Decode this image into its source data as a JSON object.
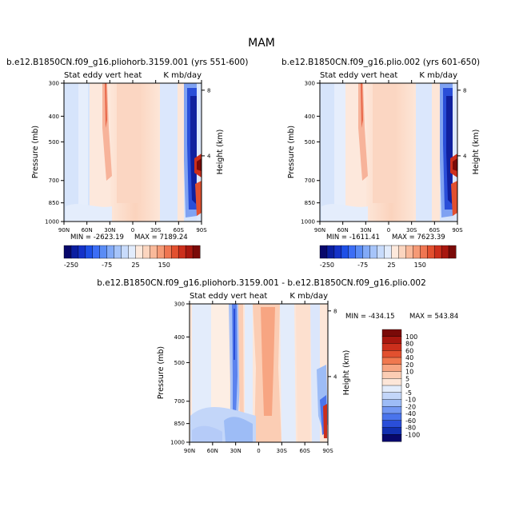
{
  "title": "MAM",
  "colorbar_top": {
    "labels": [
      "-250",
      "-75",
      "25",
      "150"
    ],
    "colors": [
      "#08086b",
      "#0a1ea0",
      "#1432c8",
      "#1e50e6",
      "#3c6ef5",
      "#5a8cf5",
      "#82aaf7",
      "#a6c4f9",
      "#c8dbfb",
      "#e2ecfc",
      "#fde9dc",
      "#fbd5bf",
      "#f9b99a",
      "#f59a76",
      "#ef7652",
      "#e2502f",
      "#cc2f1c",
      "#a8170f",
      "#7a0a08"
    ]
  },
  "colorbar_diff": {
    "labels": [
      "100",
      "80",
      "60",
      "40",
      "20",
      "10",
      "5",
      "0",
      "-5",
      "-10",
      "-20",
      "-40",
      "-60",
      "-80",
      "-100"
    ],
    "colors": [
      "#7a0a08",
      "#a8170f",
      "#cc2f1c",
      "#e2502f",
      "#f0784f",
      "#f7a582",
      "#fbcdb4",
      "#fde6d8",
      "#e3ecfb",
      "#c3d6f9",
      "#9dbcf6",
      "#7398f2",
      "#4a74ec",
      "#2a4ed8",
      "#1230b0",
      "#08086b"
    ]
  },
  "chart_data": [
    {
      "type": "contour",
      "case_label": "b.e12.B1850CN.f09_g16.pliohorb.3159.001 (yrs 551-600)",
      "left_title": "Stat eddy vert heat",
      "right_title": "K mb/day",
      "xlabel": "",
      "ylabel": "Pressure (mb)",
      "y2label": "Height (km)",
      "x_ticks": [
        "90N",
        "60N",
        "30N",
        "0",
        "30S",
        "60S",
        "90S"
      ],
      "y_ticks": [
        "300",
        "400",
        "500",
        "700",
        "850",
        "1000"
      ],
      "y2_ticks": [
        "8",
        "4"
      ],
      "min_label": "MIN = -2623.19",
      "max_label": "MAX = 7189.24",
      "min": -2623.19,
      "max": 7189.24
    },
    {
      "type": "contour",
      "case_label": "b.e12.B1850CN.f09_g16.plio.002 (yrs 601-650)",
      "left_title": "Stat eddy vert heat",
      "right_title": "K mb/day",
      "xlabel": "",
      "ylabel": "Pressure (mb)",
      "y2label": "Height (km)",
      "x_ticks": [
        "90N",
        "60N",
        "30N",
        "0",
        "30S",
        "60S",
        "90S"
      ],
      "y_ticks": [
        "300",
        "400",
        "500",
        "700",
        "850",
        "1000"
      ],
      "y2_ticks": [
        "8",
        "4"
      ],
      "min_label": "MIN = -1611.41",
      "max_label": "MAX = 7623.39",
      "min": -1611.41,
      "max": 7623.39
    },
    {
      "type": "contour",
      "case_label": "b.e12.B1850CN.f09_g16.pliohorb.3159.001 - b.e12.B1850CN.f09_g16.plio.002",
      "left_title": "Stat eddy vert heat",
      "right_title": "K mb/day",
      "xlabel": "",
      "ylabel": "Pressure (mb)",
      "y2label": "Height (km)",
      "x_ticks": [
        "90N",
        "60N",
        "30N",
        "0",
        "30S",
        "60S",
        "90S"
      ],
      "y_ticks": [
        "300",
        "400",
        "500",
        "700",
        "850",
        "1000"
      ],
      "y2_ticks": [
        "8",
        "4"
      ],
      "min_label": "MIN = -434.15",
      "max_label": "MAX = 543.84",
      "min": -434.15,
      "max": 543.84
    }
  ]
}
